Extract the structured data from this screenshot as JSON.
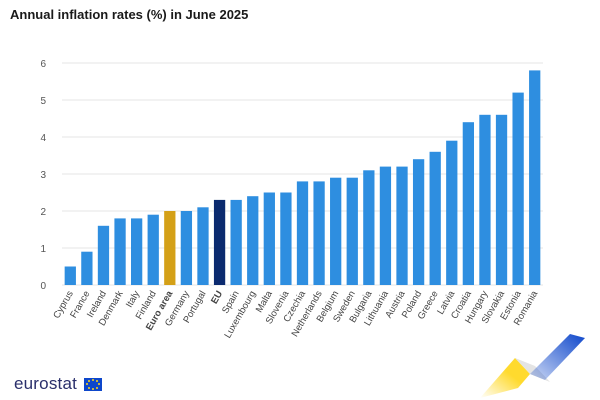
{
  "title": "Annual inflation rates (%) in June 2025",
  "logo": {
    "text": "eurostat",
    "flag_icon": "eu-flag-icon"
  },
  "colors": {
    "bar": "#2e8ee0",
    "euro_area": "#d4a017",
    "eu": "#0b2a6f",
    "grid": "#e6e6e6",
    "axis_text": "#555555",
    "deco_yellow": "#ffd617",
    "deco_blue": "#0e47cb"
  },
  "chart_data": {
    "type": "bar",
    "title": "Annual inflation rates (%) in June 2025",
    "xlabel": "",
    "ylabel": "",
    "ylim": [
      0,
      6
    ],
    "yticks": [
      0,
      1,
      2,
      3,
      4,
      5,
      6
    ],
    "grid": true,
    "categories": [
      "Cyprus",
      "France",
      "Ireland",
      "Denmark",
      "Italy",
      "Finland",
      "Euro area",
      "Germany",
      "Portugal",
      "EU",
      "Spain",
      "Luxembourg",
      "Malta",
      "Slovenia",
      "Czechia",
      "Netherlands",
      "Belgium",
      "Sweden",
      "Bulgaria",
      "Lithuania",
      "Austria",
      "Poland",
      "Greece",
      "Latvia",
      "Croatia",
      "Hungary",
      "Slovakia",
      "Estonia",
      "Romania"
    ],
    "values": [
      0.5,
      0.9,
      1.6,
      1.8,
      1.8,
      1.9,
      2.0,
      2.0,
      2.1,
      2.3,
      2.3,
      2.4,
      2.5,
      2.5,
      2.8,
      2.8,
      2.9,
      2.9,
      3.1,
      3.2,
      3.2,
      3.4,
      3.6,
      3.9,
      4.4,
      4.6,
      4.6,
      5.2,
      5.8
    ],
    "highlight": {
      "Euro area": "euro_area",
      "EU": "eu"
    },
    "bold_labels": [
      "Euro area",
      "EU"
    ]
  }
}
